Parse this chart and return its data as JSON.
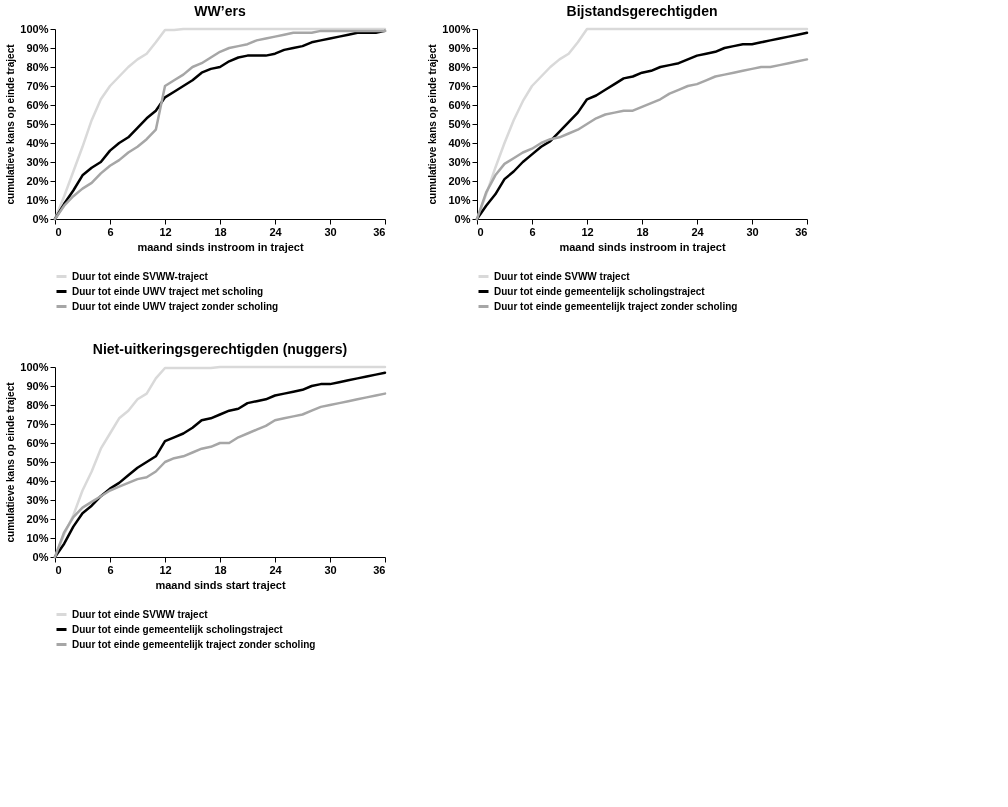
{
  "chart_data": [
    {
      "type": "line",
      "title": "WW’ers",
      "xlabel": "maand sinds instroom in traject",
      "ylabel": "cumulatieve kans op einde traject",
      "x": [
        0,
        1,
        2,
        3,
        4,
        5,
        6,
        7,
        8,
        9,
        10,
        11,
        12,
        13,
        14,
        15,
        16,
        17,
        18,
        19,
        20,
        21,
        22,
        23,
        24,
        25,
        26,
        27,
        28,
        29,
        30,
        31,
        32,
        33,
        34,
        35,
        36
      ],
      "series": [
        {
          "name": "Duur tot einde SVWW-traject",
          "color": "#d9d9d9",
          "values": [
            0,
            12,
            25,
            38,
            52,
            63,
            70,
            75,
            80,
            84,
            87,
            93,
            99.5,
            99.5,
            100,
            100,
            100,
            100,
            100,
            100,
            100,
            100,
            100,
            100,
            100,
            100,
            100,
            100,
            100,
            100,
            100,
            100,
            100,
            100,
            100,
            100,
            100
          ]
        },
        {
          "name": "Duur tot einde UWV traject met scholing",
          "color": "#000000",
          "values": [
            0,
            8,
            15,
            23,
            27,
            30,
            36,
            40,
            43,
            48,
            53,
            57,
            64,
            67,
            70,
            73,
            77,
            79,
            80,
            83,
            85,
            86,
            86,
            86,
            87,
            89,
            90,
            91,
            93,
            94,
            95,
            96,
            97,
            98,
            98,
            98,
            99
          ]
        },
        {
          "name": "Duur tot einde UWV traject zonder scholing",
          "color": "#a6a6a6",
          "values": [
            0,
            7,
            12,
            16,
            19,
            24,
            28,
            31,
            35,
            38,
            42,
            47,
            70,
            73,
            76,
            80,
            82,
            85,
            88,
            90,
            91,
            92,
            94,
            95,
            96,
            97,
            98,
            98,
            98,
            99,
            99,
            99,
            99,
            99,
            99,
            99,
            99
          ]
        }
      ],
      "xlim": [
        0,
        36
      ],
      "xticks": [
        0,
        6,
        12,
        18,
        24,
        30,
        36
      ],
      "ylim": [
        0,
        100
      ],
      "yticks": [
        {
          "value": 0,
          "label": "0%"
        },
        {
          "value": 10,
          "label": "10%"
        },
        {
          "value": 20,
          "label": "20%"
        },
        {
          "value": 30,
          "label": "30%"
        },
        {
          "value": 40,
          "label": "40%"
        },
        {
          "value": 50,
          "label": "50%"
        },
        {
          "value": 60,
          "label": "60%"
        },
        {
          "value": 70,
          "label": "70%"
        },
        {
          "value": 80,
          "label": "80%"
        },
        {
          "value": 90,
          "label": "90%"
        },
        {
          "value": 100,
          "label": "100%"
        }
      ],
      "grid": false,
      "legend": "bottom",
      "marker": "none",
      "line_style": "solid"
    },
    {
      "type": "line",
      "title": "Bijstandsgerechtigden",
      "xlabel": "maand sinds instroom in traject",
      "ylabel": "cumulatieve kans op einde traject",
      "x": [
        0,
        1,
        2,
        3,
        4,
        5,
        6,
        7,
        8,
        9,
        10,
        11,
        12,
        13,
        14,
        15,
        16,
        17,
        18,
        19,
        20,
        21,
        22,
        23,
        24,
        25,
        26,
        27,
        28,
        29,
        30,
        31,
        32,
        33,
        34,
        35,
        36
      ],
      "series": [
        {
          "name": "Duur tot einde SVWW traject",
          "color": "#d9d9d9",
          "values": [
            0,
            13,
            27,
            40,
            52,
            62,
            70,
            75,
            80,
            84,
            87,
            93,
            100,
            100,
            100,
            100,
            100,
            100,
            100,
            100,
            100,
            100,
            100,
            100,
            100,
            100,
            100,
            100,
            100,
            100,
            100,
            100,
            100,
            100,
            100,
            100,
            100
          ]
        },
        {
          "name": "Duur tot einde gemeentelijk scholingstraject",
          "color": "#000000",
          "values": [
            0,
            7,
            13,
            21,
            25,
            30,
            34,
            38,
            41,
            46,
            51,
            56,
            63,
            65,
            68,
            71,
            74,
            75,
            77,
            78,
            80,
            81,
            82,
            84,
            86,
            87,
            88,
            90,
            91,
            92,
            92,
            93,
            94,
            95,
            96,
            97,
            98
          ]
        },
        {
          "name": "Duur tot einde gemeentelijk traject zonder scholing",
          "color": "#a6a6a6",
          "values": [
            0,
            14,
            23,
            29,
            32,
            35,
            37,
            40,
            42,
            43,
            45,
            47,
            50,
            53,
            55,
            56,
            57,
            57,
            59,
            61,
            63,
            66,
            68,
            70,
            71,
            73,
            75,
            76,
            77,
            78,
            79,
            80,
            80,
            81,
            82,
            83,
            84
          ]
        }
      ],
      "xlim": [
        0,
        36
      ],
      "xticks": [
        0,
        6,
        12,
        18,
        24,
        30,
        36
      ],
      "ylim": [
        0,
        100
      ],
      "yticks": [
        {
          "value": 0,
          "label": "0%"
        },
        {
          "value": 10,
          "label": "10%"
        },
        {
          "value": 20,
          "label": "20%"
        },
        {
          "value": 30,
          "label": "30%"
        },
        {
          "value": 40,
          "label": "40%"
        },
        {
          "value": 50,
          "label": "50%"
        },
        {
          "value": 60,
          "label": "60%"
        },
        {
          "value": 70,
          "label": "70%"
        },
        {
          "value": 80,
          "label": "80%"
        },
        {
          "value": 90,
          "label": "90%"
        },
        {
          "value": 100,
          "label": "100%"
        }
      ],
      "grid": false,
      "legend": "bottom",
      "marker": "none",
      "line_style": "solid"
    },
    {
      "type": "line",
      "title": "Niet-uitkeringsgerechtigden (nuggers)",
      "xlabel": "maand sinds start traject",
      "ylabel": "cumulatieve kans op einde traject",
      "x": [
        0,
        1,
        2,
        3,
        4,
        5,
        6,
        7,
        8,
        9,
        10,
        11,
        12,
        13,
        14,
        15,
        16,
        17,
        18,
        19,
        20,
        21,
        22,
        23,
        24,
        25,
        26,
        27,
        28,
        29,
        30,
        31,
        32,
        33,
        34,
        35,
        36
      ],
      "series": [
        {
          "name": "Duur tot einde SVWW traject",
          "color": "#d9d9d9",
          "values": [
            0,
            12,
            22,
            35,
            45,
            57,
            65,
            73,
            77,
            83,
            86,
            94,
            99.5,
            99.5,
            99.5,
            99.5,
            99.5,
            99.5,
            100,
            100,
            100,
            100,
            100,
            100,
            100,
            100,
            100,
            100,
            100,
            100,
            100,
            100,
            100,
            100,
            100,
            100,
            100
          ]
        },
        {
          "name": "Duur tot einde gemeentelijk scholingstraject",
          "color": "#000000",
          "values": [
            0,
            7,
            16,
            23,
            27,
            32,
            36,
            39,
            43,
            47,
            50,
            53,
            61,
            63,
            65,
            68,
            72,
            73,
            75,
            77,
            78,
            81,
            82,
            83,
            85,
            86,
            87,
            88,
            90,
            91,
            91,
            92,
            93,
            94,
            95,
            96,
            97
          ]
        },
        {
          "name": "Duur tot einde gemeentelijk traject zonder scholing",
          "color": "#a6a6a6",
          "values": [
            0,
            13,
            21,
            26,
            29,
            32,
            35,
            37,
            39,
            41,
            42,
            45,
            50,
            52,
            53,
            55,
            57,
            58,
            60,
            60,
            63,
            65,
            67,
            69,
            72,
            73,
            74,
            75,
            77,
            79,
            80,
            81,
            82,
            83,
            84,
            85,
            86
          ]
        }
      ],
      "xlim": [
        0,
        36
      ],
      "xticks": [
        0,
        6,
        12,
        18,
        24,
        30,
        36
      ],
      "ylim": [
        0,
        100
      ],
      "yticks": [
        {
          "value": 0,
          "label": "0%"
        },
        {
          "value": 10,
          "label": "10%"
        },
        {
          "value": 20,
          "label": "20%"
        },
        {
          "value": 30,
          "label": "30%"
        },
        {
          "value": 40,
          "label": "40%"
        },
        {
          "value": 50,
          "label": "50%"
        },
        {
          "value": 60,
          "label": "60%"
        },
        {
          "value": 70,
          "label": "70%"
        },
        {
          "value": 80,
          "label": "80%"
        },
        {
          "value": 90,
          "label": "90%"
        },
        {
          "value": 100,
          "label": "100%"
        }
      ],
      "grid": false,
      "legend": "bottom",
      "marker": "none",
      "line_style": "solid"
    }
  ]
}
